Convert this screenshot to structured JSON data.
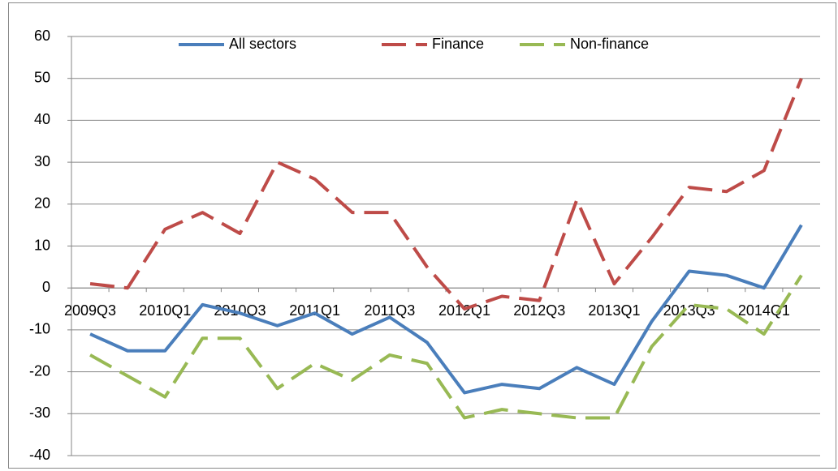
{
  "chart_data": {
    "type": "line",
    "categories": [
      "2009Q3",
      null,
      "2010Q1",
      null,
      "2010Q3",
      null,
      "2011Q1",
      null,
      "2011Q3",
      null,
      "2012Q1",
      null,
      "2012Q3",
      null,
      "2013Q1",
      null,
      "2013Q3",
      null,
      "2014Q1",
      null
    ],
    "series": [
      {
        "name": "All sectors",
        "color": "#4a7ebb",
        "dash": "solid",
        "values": [
          -11,
          -15,
          -15,
          -4,
          -6,
          -9,
          -6,
          -11,
          -7,
          -13,
          -25,
          -23,
          -24,
          -19,
          -23,
          -8,
          4,
          3,
          0,
          15
        ]
      },
      {
        "name": "Finance",
        "color": "#be4b48",
        "dash": "dashed",
        "values": [
          1,
          0,
          14,
          18,
          13,
          30,
          26,
          18,
          18,
          5,
          -5,
          -2,
          -3,
          21,
          1,
          12,
          24,
          23,
          28,
          50
        ]
      },
      {
        "name": "Non-finance",
        "color": "#98b954",
        "dash": "dashed",
        "values": [
          -16,
          -21,
          -26,
          -12,
          -12,
          -24,
          -18,
          -22,
          -16,
          -18,
          -31,
          -29,
          -30,
          -31,
          -31,
          -14,
          -4,
          -5,
          -11,
          3
        ]
      }
    ],
    "ylim": [
      -40,
      60
    ],
    "yticks": [
      -40,
      -30,
      -20,
      -10,
      0,
      10,
      20,
      30,
      40,
      50,
      60
    ],
    "grid": true,
    "legend": "top"
  }
}
